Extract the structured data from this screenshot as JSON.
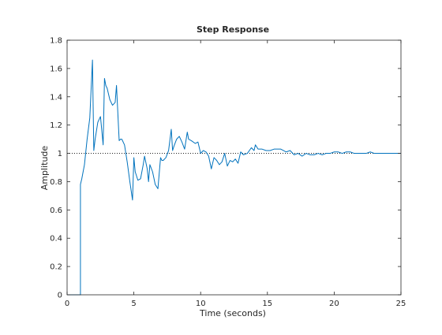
{
  "chart_data": {
    "type": "line",
    "title": "Step Response",
    "xlabel": "Time (seconds)",
    "ylabel": "Amplitude",
    "xlim": [
      0,
      25
    ],
    "ylim": [
      0,
      1.8
    ],
    "xticks": [
      0,
      5,
      10,
      15,
      20,
      25
    ],
    "yticks": [
      0,
      0.2,
      0.4,
      0.6,
      0.8,
      1,
      1.2,
      1.4,
      1.6,
      1.8
    ],
    "xtick_labels": [
      "0",
      "5",
      "10",
      "15",
      "20",
      "25"
    ],
    "ytick_labels": [
      "0",
      "0.2",
      "0.4",
      "0.6",
      "0.8",
      "1",
      "1.2",
      "1.4",
      "1.6",
      "1.8"
    ],
    "grid": false,
    "reference_line": {
      "y": 1.0,
      "style": "dotted",
      "color": "#000000"
    },
    "series": [
      {
        "color": "#0072bd",
        "x": [
          0,
          1.0,
          1.0,
          1.1,
          1.3,
          1.5,
          1.7,
          1.9,
          2.0,
          2.1,
          2.3,
          2.5,
          2.7,
          2.8,
          2.9,
          3.0,
          3.2,
          3.4,
          3.6,
          3.7,
          3.9,
          4.0,
          4.1,
          4.3,
          4.5,
          4.7,
          4.9,
          5.0,
          5.1,
          5.3,
          5.5,
          5.7,
          5.8,
          6.0,
          6.1,
          6.2,
          6.4,
          6.6,
          6.8,
          7.0,
          7.1,
          7.2,
          7.4,
          7.6,
          7.8,
          7.9,
          8.0,
          8.2,
          8.4,
          8.6,
          8.8,
          9.0,
          9.1,
          9.3,
          9.6,
          9.8,
          10.0,
          10.2,
          10.4,
          10.6,
          10.8,
          11.0,
          11.2,
          11.4,
          11.6,
          11.8,
          12.0,
          12.2,
          12.4,
          12.6,
          12.8,
          13.0,
          13.2,
          13.5,
          13.8,
          14.0,
          14.1,
          14.3,
          14.6,
          14.9,
          15.2,
          15.5,
          15.8,
          16.0,
          16.2,
          16.4,
          16.7,
          17.0,
          17.3,
          17.6,
          17.9,
          18.2,
          18.5,
          18.8,
          19.1,
          19.4,
          19.7,
          20.0,
          20.3,
          20.6,
          20.9,
          21.2,
          21.5,
          21.8,
          22.1,
          22.4,
          22.7,
          23.0,
          23.3,
          23.6,
          23.9,
          24.2,
          24.5,
          24.8,
          25.0
        ],
        "y": [
          0,
          0,
          0.78,
          0.82,
          0.92,
          1.1,
          1.25,
          1.66,
          1.02,
          1.1,
          1.22,
          1.26,
          1.06,
          1.53,
          1.48,
          1.46,
          1.38,
          1.34,
          1.36,
          1.48,
          1.09,
          1.1,
          1.1,
          1.06,
          0.94,
          0.8,
          0.67,
          0.97,
          0.87,
          0.81,
          0.82,
          0.92,
          0.98,
          0.89,
          0.8,
          0.92,
          0.87,
          0.78,
          0.75,
          0.97,
          0.95,
          0.95,
          0.97,
          1.02,
          1.17,
          1.02,
          1.05,
          1.1,
          1.12,
          1.08,
          1.03,
          1.15,
          1.1,
          1.09,
          1.07,
          1.08,
          1.0,
          1.02,
          1.01,
          0.98,
          0.89,
          0.97,
          0.95,
          0.92,
          0.94,
          1.0,
          0.91,
          0.95,
          0.94,
          0.96,
          0.93,
          1.01,
          0.99,
          1.0,
          1.04,
          1.02,
          1.06,
          1.03,
          1.03,
          1.02,
          1.02,
          1.03,
          1.03,
          1.03,
          1.02,
          1.01,
          1.02,
          0.99,
          1.0,
          0.98,
          1.0,
          0.99,
          0.99,
          1.0,
          0.99,
          1.0,
          1.0,
          1.01,
          1.01,
          1.0,
          1.01,
          1.01,
          1.0,
          1.0,
          1.0,
          1.0,
          1.01,
          1.0,
          1.0,
          1.0,
          1.0,
          1.0,
          1.0,
          1.0,
          1.0
        ]
      }
    ]
  }
}
